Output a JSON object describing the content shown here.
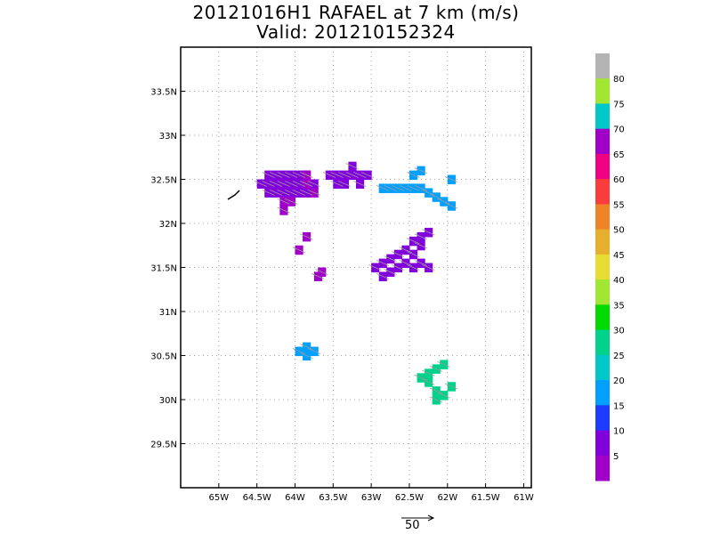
{
  "title": "20121016H1 RAFAEL at 7 km (m/s)",
  "subtitle": "Valid: 201210152324",
  "vector_scale_label": "50",
  "chart_data": {
    "type": "heatmap",
    "title": "20121016H1 RAFAEL at 7 km (m/s)",
    "subtitle": "Valid: 201210152324",
    "x_axis": {
      "min": -65.5,
      "max": -60.9,
      "ticks": [
        -65,
        -64.5,
        -64,
        -63.5,
        -63,
        -62.5,
        -62,
        -61.5,
        -61
      ],
      "tick_labels": [
        "65W",
        "64.5W",
        "64W",
        "63.5W",
        "63W",
        "62.5W",
        "62W",
        "61.5W",
        "61W"
      ]
    },
    "y_axis": {
      "min": 29.0,
      "max": 34.0,
      "ticks": [
        29.5,
        30,
        30.5,
        31,
        31.5,
        32,
        32.5,
        33,
        33.5
      ],
      "tick_labels": [
        "29.5N",
        "30N",
        "30.5N",
        "31N",
        "31.5N",
        "32N",
        "32.5N",
        "33N",
        "33.5N"
      ]
    },
    "grid": true,
    "colorbar": {
      "labels": [
        "5",
        "10",
        "15",
        "20",
        "25",
        "30",
        "35",
        "40",
        "45",
        "50",
        "55",
        "60",
        "65",
        "70",
        "75",
        "80"
      ],
      "colors": [
        "#a000c8",
        "#8200dc",
        "#1e3cff",
        "#00a0ff",
        "#00c8c8",
        "#00d28c",
        "#00dc00",
        "#a0e632",
        "#e6dc32",
        "#e6af2d",
        "#f08228",
        "#fa3c3c",
        "#f00082",
        "#a000c8",
        "#00c8c8",
        "#a0e632",
        "#b4b4b4"
      ]
    },
    "vector_scale": 50,
    "regions": [
      {
        "name": "upper-left-cluster",
        "dominant_speed": "10-15",
        "cells": [
          [
            -64.35,
            32.55
          ],
          [
            -64.25,
            32.55
          ],
          [
            -64.15,
            32.55
          ],
          [
            -64.05,
            32.55
          ],
          [
            -63.95,
            32.55
          ],
          [
            -63.85,
            32.55
          ],
          [
            -64.45,
            32.45
          ],
          [
            -64.35,
            32.45
          ],
          [
            -64.25,
            32.45
          ],
          [
            -64.15,
            32.45
          ],
          [
            -64.05,
            32.45
          ],
          [
            -63.95,
            32.45
          ],
          [
            -63.85,
            32.45
          ],
          [
            -63.75,
            32.45
          ],
          [
            -64.35,
            32.35
          ],
          [
            -64.25,
            32.35
          ],
          [
            -64.15,
            32.35
          ],
          [
            -64.05,
            32.35
          ],
          [
            -63.95,
            32.35
          ],
          [
            -63.85,
            32.35
          ]
        ]
      },
      {
        "name": "upper-left-purple",
        "dominant_speed": "5-10",
        "cells": [
          [
            -64.15,
            32.25
          ],
          [
            -64.05,
            32.25
          ],
          [
            -64.15,
            32.15
          ],
          [
            -63.85,
            32.55
          ],
          [
            -63.85,
            32.45
          ],
          [
            -63.75,
            32.35
          ]
        ]
      },
      {
        "name": "upper-middle-band",
        "dominant_speed": "10-20",
        "cells": [
          [
            -63.55,
            32.55
          ],
          [
            -63.45,
            32.55
          ],
          [
            -63.35,
            32.55
          ],
          [
            -63.25,
            32.55
          ],
          [
            -63.15,
            32.55
          ],
          [
            -63.05,
            32.55
          ],
          [
            -63.25,
            32.65
          ],
          [
            -63.45,
            32.45
          ],
          [
            -63.35,
            32.45
          ],
          [
            -63.15,
            32.45
          ]
        ]
      },
      {
        "name": "upper-right-band",
        "dominant_speed": "20-25",
        "cells": [
          [
            -62.85,
            32.4
          ],
          [
            -62.75,
            32.4
          ],
          [
            -62.65,
            32.4
          ],
          [
            -62.55,
            32.4
          ],
          [
            -62.45,
            32.4
          ],
          [
            -62.35,
            32.4
          ],
          [
            -62.25,
            32.35
          ],
          [
            -62.15,
            32.3
          ],
          [
            -62.05,
            32.25
          ],
          [
            -61.95,
            32.2
          ],
          [
            -62.45,
            32.55
          ],
          [
            -62.35,
            32.6
          ],
          [
            -61.95,
            32.5
          ]
        ]
      },
      {
        "name": "central-band",
        "dominant_speed": "10-25",
        "cells": [
          [
            -62.25,
            31.9
          ],
          [
            -62.35,
            31.85
          ],
          [
            -62.45,
            31.8
          ],
          [
            -62.55,
            31.7
          ],
          [
            -62.65,
            31.65
          ],
          [
            -62.75,
            31.6
          ],
          [
            -62.85,
            31.55
          ],
          [
            -62.95,
            31.5
          ],
          [
            -62.35,
            31.75
          ],
          [
            -62.45,
            31.65
          ],
          [
            -62.55,
            31.55
          ],
          [
            -62.65,
            31.5
          ],
          [
            -62.75,
            31.45
          ],
          [
            -62.85,
            31.4
          ],
          [
            -62.35,
            31.55
          ],
          [
            -62.45,
            31.5
          ],
          [
            -62.25,
            31.5
          ]
        ]
      },
      {
        "name": "small-patches",
        "dominant_speed": "5-20",
        "cells": [
          [
            -63.85,
            31.85
          ],
          [
            -63.95,
            31.7
          ],
          [
            -63.65,
            31.45
          ],
          [
            -63.7,
            31.4
          ]
        ]
      },
      {
        "name": "lower-left-patch",
        "dominant_speed": "20-25",
        "cells": [
          [
            -63.95,
            30.55
          ],
          [
            -63.85,
            30.6
          ],
          [
            -63.75,
            30.55
          ],
          [
            -63.85,
            30.5
          ]
        ]
      },
      {
        "name": "lower-right-patch",
        "dominant_speed": "30-40",
        "cells": [
          [
            -62.35,
            30.25
          ],
          [
            -62.25,
            30.3
          ],
          [
            -62.15,
            30.35
          ],
          [
            -62.05,
            30.4
          ],
          [
            -62.25,
            30.2
          ],
          [
            -62.15,
            30.1
          ],
          [
            -62.05,
            30.05
          ],
          [
            -62.15,
            30.0
          ],
          [
            -61.95,
            30.15
          ]
        ]
      }
    ]
  }
}
